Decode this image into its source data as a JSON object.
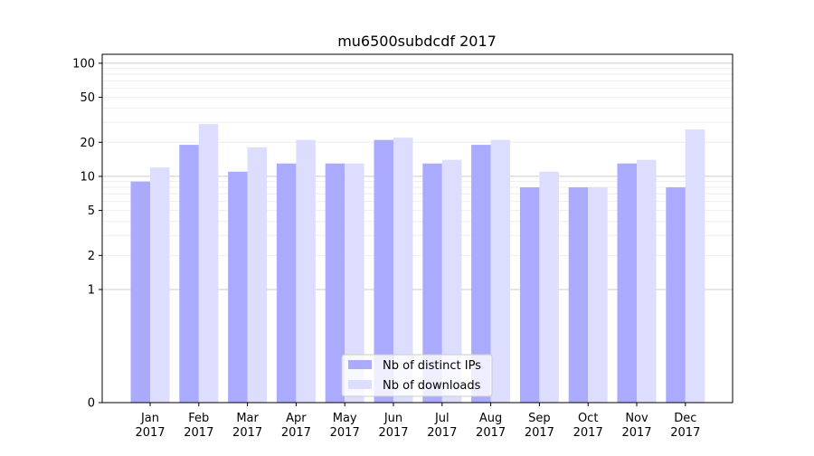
{
  "chart_data": {
    "type": "bar",
    "title": "mu6500subdcdf 2017",
    "xlabel": "",
    "ylabel": "",
    "y_scale": "symlog",
    "ylim": [
      0,
      120
    ],
    "y_ticks": [
      0,
      1,
      2,
      5,
      10,
      20,
      50,
      100
    ],
    "y_tick_labels": [
      "0",
      "1",
      "2",
      "5",
      "10",
      "20",
      "50",
      "100"
    ],
    "categories": [
      "Jan\n2017",
      "Feb\n2017",
      "Mar\n2017",
      "Apr\n2017",
      "May\n2017",
      "Jun\n2017",
      "Jul\n2017",
      "Aug\n2017",
      "Sep\n2017",
      "Oct\n2017",
      "Nov\n2017",
      "Dec\n2017"
    ],
    "series": [
      {
        "name": "Nb of distinct IPs",
        "values": [
          9,
          19,
          11,
          13,
          13,
          21,
          13,
          19,
          8,
          8,
          13,
          8
        ],
        "color": "#aaaaff"
      },
      {
        "name": "Nb of downloads",
        "values": [
          12,
          29,
          18,
          21,
          13,
          22,
          14,
          21,
          11,
          8,
          14,
          26
        ],
        "color": "#ddddff"
      }
    ],
    "legend_position": "bottom-center",
    "grid": true
  }
}
